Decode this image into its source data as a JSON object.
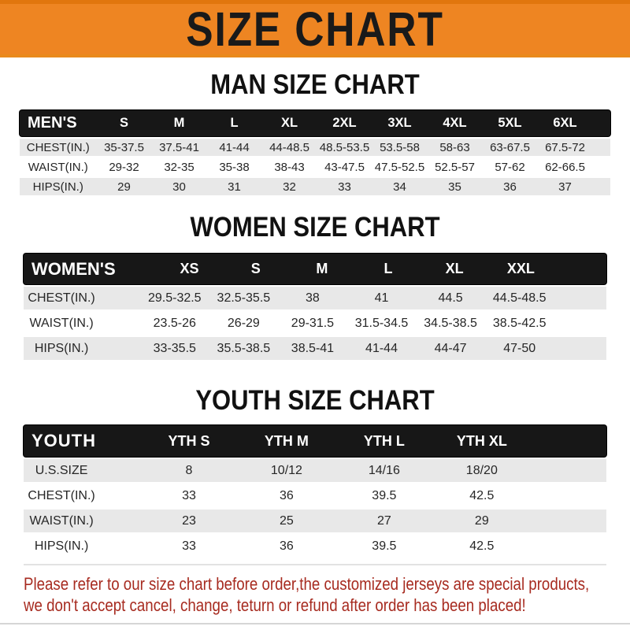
{
  "banner": {
    "title": "SIZE CHART"
  },
  "colors": {
    "banner_orange": "#EE8522",
    "header_bar_black": "#171717",
    "row_stripe_gray": "#e8e8e8",
    "notice_red": "#A72B20"
  },
  "sections": [
    {
      "id": "man",
      "heading": "MAN SIZE CHART",
      "table": {
        "label": "MEN'S",
        "columns": [
          "S",
          "M",
          "L",
          "XL",
          "2XL",
          "3XL",
          "4XL",
          "5XL",
          "6XL"
        ],
        "rows": [
          {
            "label": "CHEST(IN.)",
            "values": [
              "35-37.5",
              "37.5-41",
              "41-44",
              "44-48.5",
              "48.5-53.5",
              "53.5-58",
              "58-63",
              "63-67.5",
              "67.5-72"
            ]
          },
          {
            "label": "WAIST(IN.)",
            "values": [
              "29-32",
              "32-35",
              "35-38",
              "38-43",
              "43-47.5",
              "47.5-52.5",
              "52.5-57",
              "57-62",
              "62-66.5"
            ]
          },
          {
            "label": "HIPS(IN.)",
            "values": [
              "29",
              "30",
              "31",
              "32",
              "33",
              "34",
              "35",
              "36",
              "37"
            ]
          }
        ]
      }
    },
    {
      "id": "women",
      "heading": "WOMEN SIZE CHART",
      "table": {
        "label": "WOMEN'S",
        "columns": [
          "XS",
          "S",
          "M",
          "L",
          "XL",
          "XXL"
        ],
        "rows": [
          {
            "label": "CHEST(IN.)",
            "values": [
              "29.5-32.5",
              "32.5-35.5",
              "38",
              "41",
              "44.5",
              "44.5-48.5"
            ]
          },
          {
            "label": "WAIST(IN.)",
            "values": [
              "23.5-26",
              "26-29",
              "29-31.5",
              "31.5-34.5",
              "34.5-38.5",
              "38.5-42.5"
            ]
          },
          {
            "label": "HIPS(IN.)",
            "values": [
              "33-35.5",
              "35.5-38.5",
              "38.5-41",
              "41-44",
              "44-47",
              "47-50"
            ]
          }
        ]
      }
    },
    {
      "id": "youth",
      "heading": "YOUTH SIZE CHART",
      "table": {
        "label": "YOUTH",
        "columns": [
          "YTH S",
          "YTH M",
          "YTH L",
          "YTH XL"
        ],
        "rows": [
          {
            "label": "U.S.SIZE",
            "values": [
              "8",
              "10/12",
              "14/16",
              "18/20"
            ]
          },
          {
            "label": "CHEST(IN.)",
            "values": [
              "33",
              "36",
              "39.5",
              "42.5"
            ]
          },
          {
            "label": "WAIST(IN.)",
            "values": [
              "23",
              "25",
              "27",
              "29"
            ]
          },
          {
            "label": "HIPS(IN.)",
            "values": [
              "33",
              "36",
              "39.5",
              "42.5"
            ]
          }
        ]
      }
    }
  ],
  "footer": {
    "line1": "Please refer to our size chart before order,the customized jerseys are special products,",
    "line2": "we don't accept cancel, change, teturn or refund after order has been placed!"
  }
}
